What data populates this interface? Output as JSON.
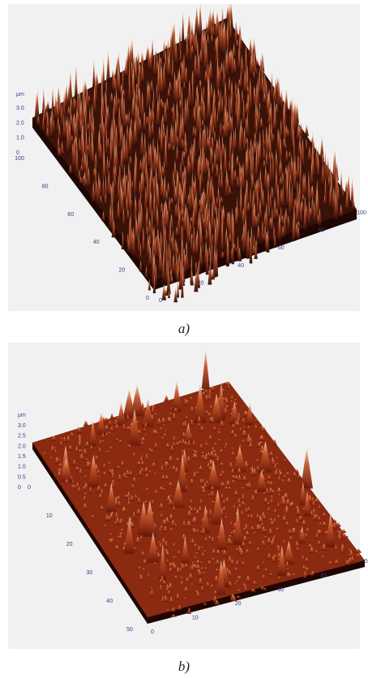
{
  "panels": [
    {
      "caption": "a)",
      "z_axis": {
        "unit": "µm",
        "ticks": [
          "3.0",
          "2.0",
          "1.0",
          "0"
        ]
      },
      "left_axis": {
        "ticks": [
          "100",
          "80",
          "60",
          "40",
          "20",
          "0"
        ]
      },
      "bottom_axis": {
        "ticks": [
          "0",
          "20",
          "40",
          "60",
          "80",
          "100"
        ]
      }
    },
    {
      "caption": "b)",
      "z_axis": {
        "unit": "µm",
        "ticks": [
          "3.0",
          "2.5",
          "2.0",
          "1.5",
          "1.0",
          "0.5",
          "0"
        ]
      },
      "left_axis": {
        "ticks": [
          "0",
          "10",
          "20",
          "30",
          "40",
          "50"
        ]
      },
      "bottom_axis": {
        "ticks": [
          "0",
          "10",
          "20",
          "30",
          "40",
          "5"
        ]
      }
    }
  ]
}
